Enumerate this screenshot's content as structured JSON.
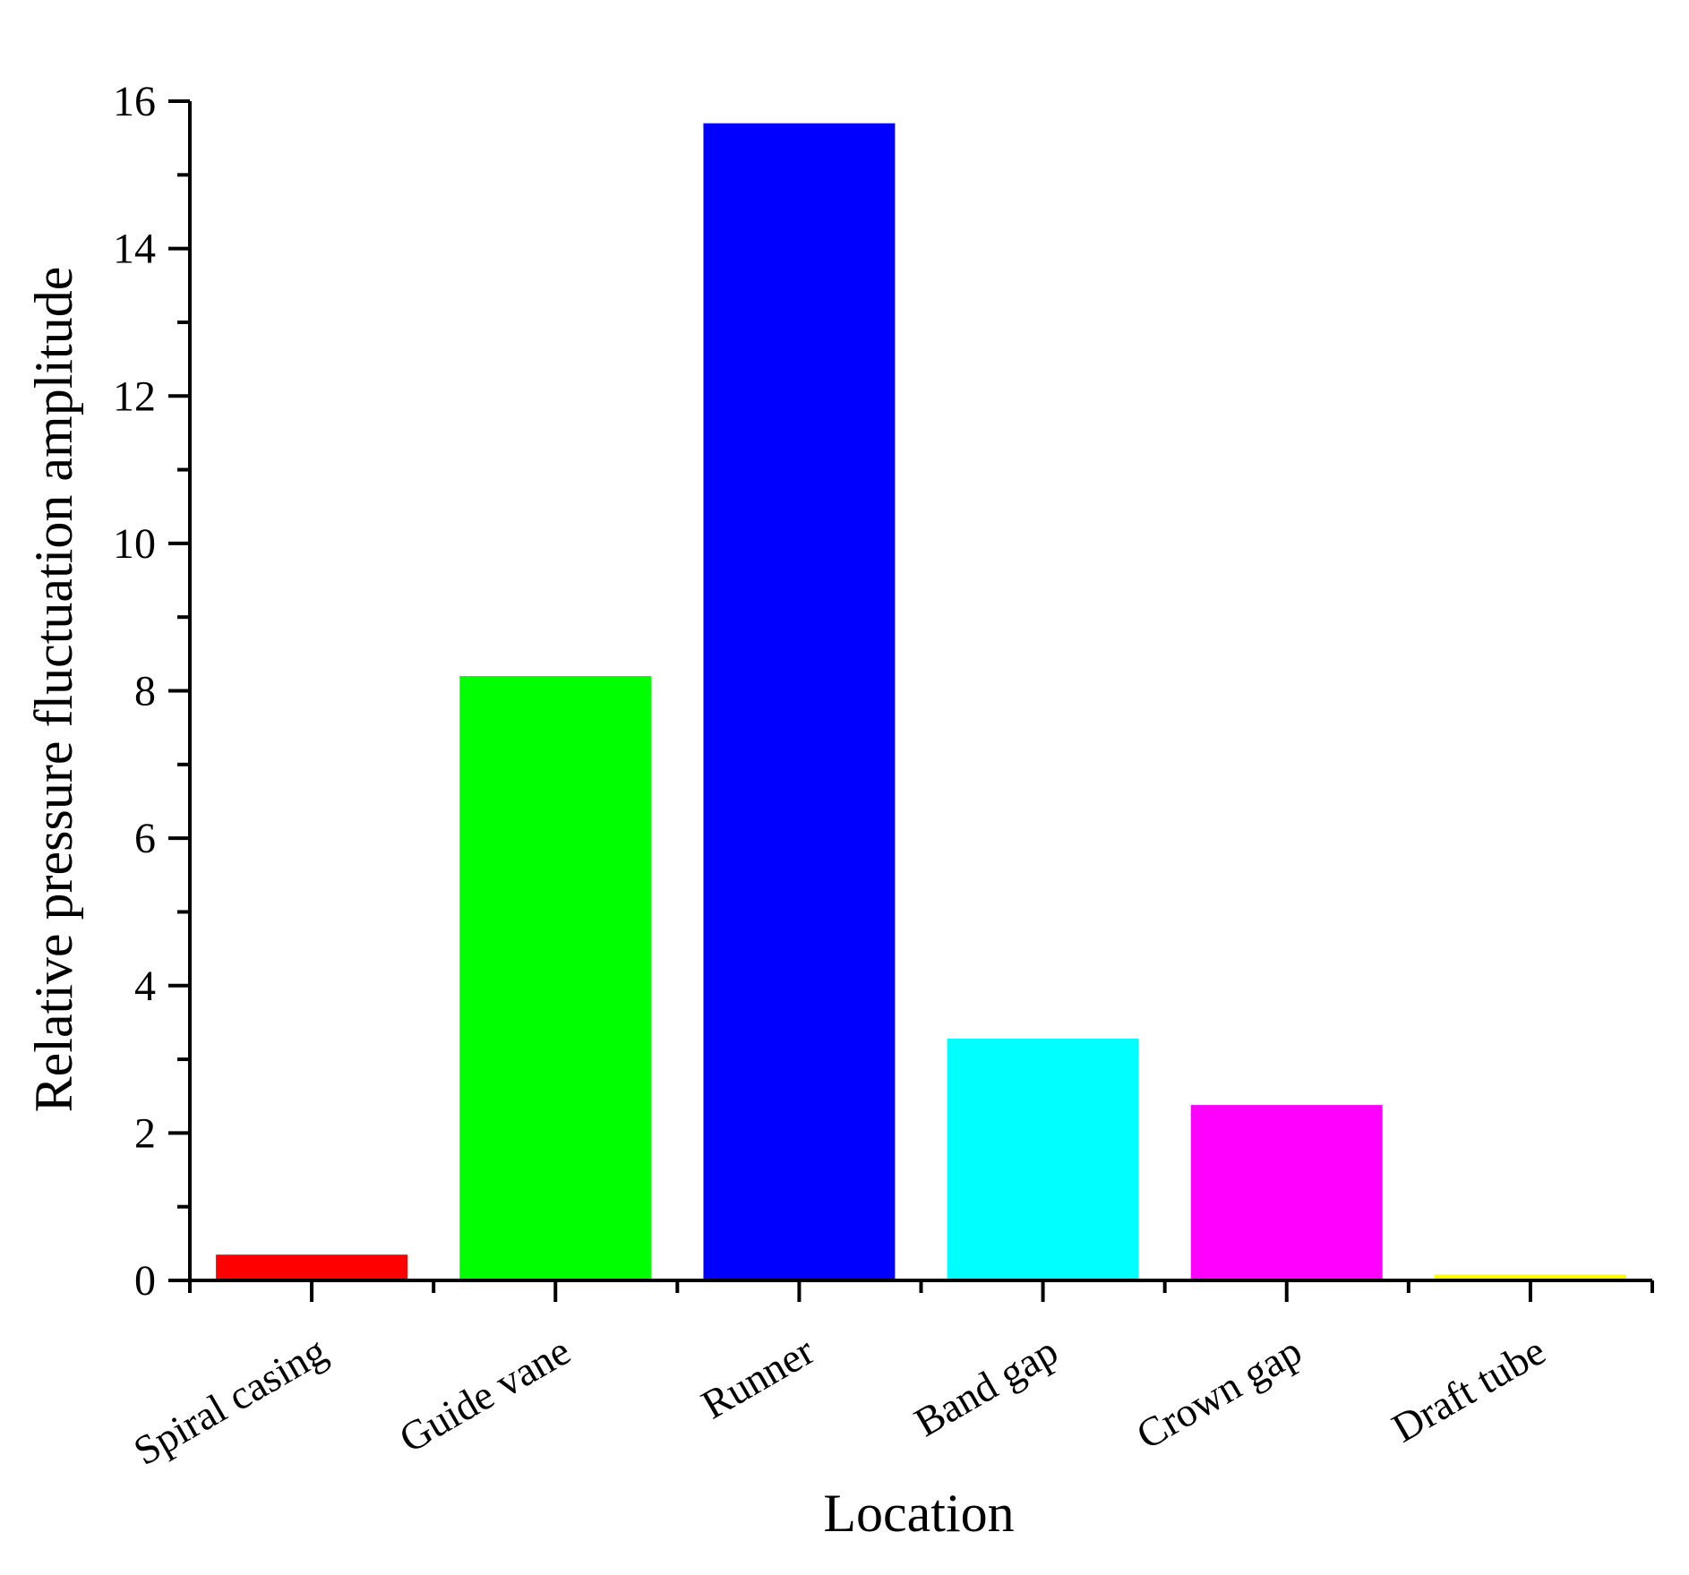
{
  "chart_data": {
    "type": "bar",
    "title": "",
    "xlabel": "Location",
    "ylabel": "Relative pressure fluctuation amplitude",
    "categories": [
      "Spiral casing",
      "Guide vane",
      "Runner",
      "Band gap",
      "Crown gap",
      "Draft tube"
    ],
    "values": [
      0.35,
      8.2,
      15.7,
      3.28,
      2.38,
      0.08
    ],
    "colors": [
      "#ff0000",
      "#00ff00",
      "#0000ff",
      "#00ffff",
      "#ff00ff",
      "#ffff00"
    ],
    "ylim": [
      0,
      16
    ],
    "yticks": [
      "0",
      "2",
      "4",
      "6",
      "8",
      "10",
      "12",
      "14",
      "16"
    ],
    "grid": false,
    "legend": "none"
  }
}
